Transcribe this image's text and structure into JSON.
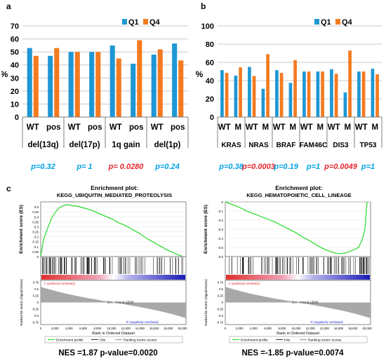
{
  "panels": {
    "a": "a",
    "b": "b",
    "c": "c"
  },
  "colors": {
    "q1": "#1f97d4",
    "q4": "#f47a20",
    "grid": "#c8c8c8",
    "axis": "#7f7f7f",
    "pblue": "#00a2e8",
    "pred": "#e8262c",
    "gsea": "#33dd33"
  },
  "chart_data": [
    {
      "type": "bar",
      "panel": "a",
      "ylabel": "%",
      "ylim": [
        0,
        70
      ],
      "yticks": [
        0,
        10,
        20,
        30,
        40,
        50,
        60,
        70
      ],
      "legend": [
        "Q1",
        "Q4"
      ],
      "legend_position": "top-right",
      "categories": [
        "WT",
        "pos",
        "WT",
        "pos",
        "WT",
        "pos",
        "WT",
        "pos"
      ],
      "groups": [
        "del(13q)",
        "del(17p)",
        "1q gain",
        "del(1p)"
      ],
      "series": [
        {
          "name": "Q1",
          "values": [
            53,
            47,
            50,
            50,
            55,
            41,
            48,
            56.5
          ]
        },
        {
          "name": "Q4",
          "values": [
            47,
            53,
            50,
            50,
            45,
            59,
            52,
            43.5
          ]
        }
      ],
      "pvalues": [
        {
          "text": "p=0.32",
          "color": "blue"
        },
        {
          "text": "p= 1",
          "color": "blue"
        },
        {
          "text": "p= 0.0280",
          "color": "red"
        },
        {
          "text": "p=0.24",
          "color": "blue"
        }
      ]
    },
    {
      "type": "bar",
      "panel": "b",
      "ylabel": "%",
      "ylim": [
        0,
        100
      ],
      "yticks": [
        0,
        20,
        40,
        60,
        80,
        100
      ],
      "legend": [
        "Q1",
        "Q4"
      ],
      "legend_position": "top-right",
      "categories": [
        "WT",
        "M",
        "WT",
        "M",
        "WT",
        "M",
        "WT",
        "M",
        "WT",
        "M",
        "WT",
        "M"
      ],
      "groups": [
        "KRAS",
        "NRAS",
        "BRAF",
        "FAM46C",
        "DIS3",
        "TP53"
      ],
      "series": [
        {
          "name": "Q1",
          "values": [
            51.5,
            45.5,
            55,
            31,
            51.5,
            37.5,
            50,
            50,
            52.5,
            27,
            50,
            53
          ]
        },
        {
          "name": "Q4",
          "values": [
            48.5,
            54.5,
            45,
            69,
            48.5,
            62.5,
            50,
            50,
            47.5,
            73,
            50,
            47
          ]
        }
      ],
      "pvalues": [
        {
          "text": "p=0.38",
          "color": "blue"
        },
        {
          "text": "p=0.0003",
          "color": "red"
        },
        {
          "text": "p=0.19",
          "color": "blue"
        },
        {
          "text": "p=1",
          "color": "blue"
        },
        {
          "text": "p=0.0049",
          "color": "red"
        },
        {
          "text": "p=1",
          "color": "blue"
        }
      ]
    },
    {
      "type": "line",
      "panel": "c-left",
      "title": "Enrichment plot:",
      "subtitle": "KEGG_UBIQUITIN_MEDIATED_PROTEOLYSIS",
      "ylabel": "Enrichment score (ES)",
      "ylim": [
        0,
        0.55
      ],
      "yticks": [
        0.0,
        0.05,
        0.1,
        0.15,
        0.2,
        0.25,
        0.3,
        0.35,
        0.4,
        0.45,
        0.5
      ],
      "xlabel": "Rank in Ordered Dataset",
      "xticks": [
        0,
        2000,
        4000,
        6000,
        8000,
        10000,
        12000,
        14000,
        16000,
        18000,
        20000
      ],
      "xlim": [
        0,
        20500
      ],
      "x": [
        0,
        400,
        900,
        1500,
        2000,
        2600,
        3100,
        3500,
        4000,
        4500,
        5000,
        6000,
        7000,
        8000,
        9000,
        10000,
        11000,
        12000,
        13000,
        14000,
        15000,
        16000,
        17000,
        18000,
        19000,
        20000
      ],
      "y": [
        0.0,
        0.17,
        0.27,
        0.38,
        0.44,
        0.49,
        0.51,
        0.52,
        0.52,
        0.51,
        0.51,
        0.49,
        0.47,
        0.44,
        0.41,
        0.38,
        0.34,
        0.31,
        0.27,
        0.23,
        0.18,
        0.14,
        0.1,
        0.06,
        0.03,
        0.0
      ],
      "ranking_ylabel": "Ranked list metric (Signal2Noise)",
      "ranking_yticks": [
        0.75,
        0.5,
        0.25,
        0.0,
        -0.25,
        -0.5,
        -0.75
      ],
      "pos_label": "'1' (positively correlated)",
      "neg_label": "'0' (negatively correlated)",
      "zero_cross": "Zero cross at 12526",
      "legend": [
        "Enrichment profile",
        "Hits",
        "Ranking metric scores"
      ],
      "caption": "NES =1.87 p-value=0.0020"
    },
    {
      "type": "line",
      "panel": "c-right",
      "title": "Enrichment plot:",
      "subtitle": "KEGG_HEMATOPOIETIC_CELL_LINEAGE",
      "ylabel": "Enrichment score (ES)",
      "ylim": [
        -0.6,
        0.0
      ],
      "yticks": [
        0.0,
        -0.1,
        -0.2,
        -0.3,
        -0.4,
        -0.5,
        -0.6
      ],
      "xlabel": "Rank in Ordered Dataset",
      "xticks": [
        0,
        2000,
        4000,
        6000,
        8000,
        10000,
        12000,
        14000,
        16000,
        18000,
        20000
      ],
      "xlim": [
        0,
        20500
      ],
      "x": [
        0,
        1000,
        2000,
        3000,
        4000,
        5000,
        6000,
        7000,
        8000,
        9000,
        10000,
        11000,
        12000,
        13000,
        14000,
        15000,
        16000,
        17000,
        18000,
        18800,
        19300,
        19700,
        20000
      ],
      "y": [
        0.0,
        -0.03,
        -0.06,
        -0.1,
        -0.13,
        -0.16,
        -0.19,
        -0.22,
        -0.26,
        -0.3,
        -0.34,
        -0.39,
        -0.43,
        -0.48,
        -0.52,
        -0.55,
        -0.57,
        -0.56,
        -0.53,
        -0.5,
        -0.42,
        -0.3,
        0.0
      ],
      "ranking_ylabel": "Ranked list metric (Signal2Noise)",
      "ranking_yticks": [
        0.75,
        0.5,
        0.25,
        0.0,
        -0.25,
        -0.5,
        -0.75
      ],
      "pos_label": "'1' (positively correlated)",
      "neg_label": "'0' (negatively correlated)",
      "zero_cross": "Zero cross at 12526",
      "legend": [
        "Enrichment profile",
        "Hits",
        "Ranking metric scores"
      ],
      "caption": "NES =-1.85 p-value=0.0074"
    }
  ]
}
